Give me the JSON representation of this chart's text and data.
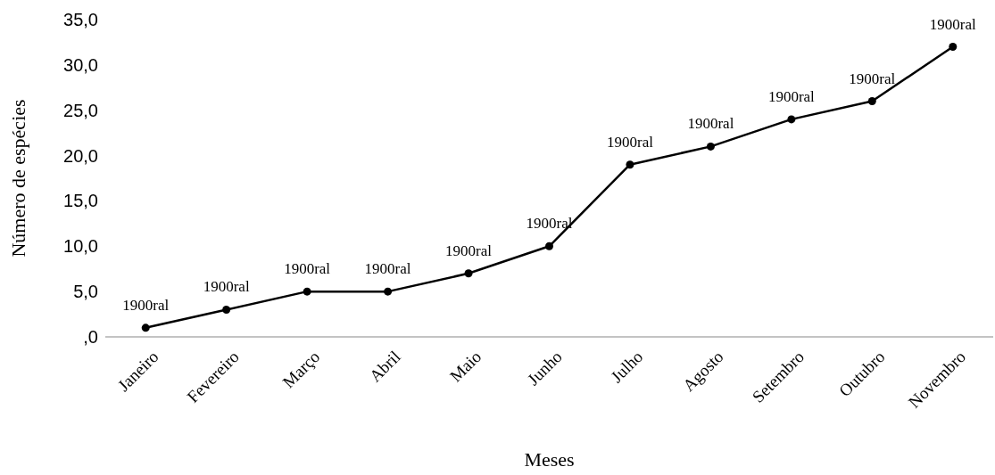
{
  "chart_data": {
    "type": "line",
    "xlabel": "Meses",
    "ylabel": "Número de espécies",
    "categories": [
      "Janeiro",
      "Fevereiro",
      "Março",
      "Abril",
      "Maio",
      "Junho",
      "Julho",
      "Agosto",
      "Setembro",
      "Outubro",
      "Novembro"
    ],
    "series": [
      {
        "color": "#000000",
        "values": [
          1,
          3,
          5,
          5,
          7,
          10,
          19,
          21,
          24,
          26,
          32
        ]
      }
    ],
    "annotations": [
      "1900ral",
      "1900ral",
      "1900ral",
      "1900ral",
      "1900ral",
      "1900ral",
      "1900ral",
      "1900ral",
      "1900ral",
      "1900ral",
      "1900ral"
    ],
    "ylim": [
      0,
      35
    ],
    "yticks": [
      {
        "value": 0,
        "label": ",0"
      },
      {
        "value": 5,
        "label": "5,0"
      },
      {
        "value": 10,
        "label": "10,0"
      },
      {
        "value": 15,
        "label": "15,0"
      },
      {
        "value": 20,
        "label": "20,0"
      },
      {
        "value": 25,
        "label": "25,0"
      },
      {
        "value": 30,
        "label": "30,0"
      },
      {
        "value": 35,
        "label": "35,0"
      }
    ],
    "marker": "circle",
    "line_style": "solid"
  }
}
